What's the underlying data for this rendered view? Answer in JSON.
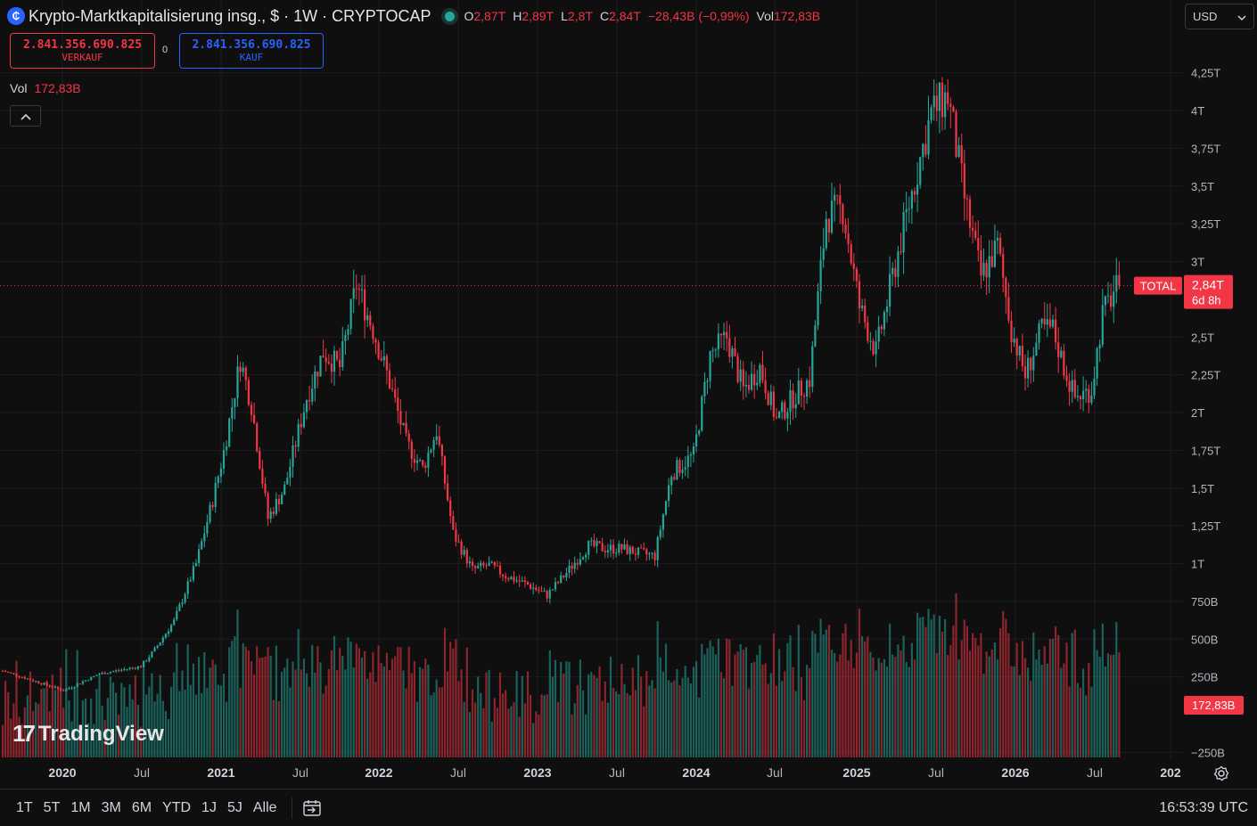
{
  "header": {
    "title": "Krypto-Marktkapitalisierung insg., $ · 1W · CRYPTOCAP",
    "ohlc": [
      {
        "key": "O",
        "value": "2,87T"
      },
      {
        "key": "H",
        "value": "2,89T"
      },
      {
        "key": "L",
        "value": "2,8T"
      },
      {
        "key": "C",
        "value": "2,84T"
      },
      {
        "key": "",
        "value": "−28,43B (−0,99%)"
      }
    ],
    "vol_key": "Vol",
    "vol_value": "172,83B"
  },
  "trade": {
    "sell_price": "2.841.356.690.825",
    "sell_label": "VERKAUF",
    "spread": "0",
    "buy_price": "2.841.356.690.825",
    "buy_label": "KAUF"
  },
  "volume_legend": {
    "label": "Vol",
    "value": "172,83B"
  },
  "currency": {
    "selected": "USD"
  },
  "price_badge": {
    "symbol": "TOTAL",
    "price": "2,84T",
    "countdown": "6d 8h"
  },
  "volume_badge": "172,83B",
  "logo_text": "TradingView",
  "range_buttons": [
    "1T",
    "5T",
    "1M",
    "3M",
    "6M",
    "YTD",
    "1J",
    "5J",
    "Alle"
  ],
  "clock": "16:53:39 UTC",
  "colors": {
    "up": "#26a69a",
    "down": "#f23645",
    "background": "#0f0f0f",
    "grid": "#1e1e1e"
  },
  "icons": [
    "crypto-logo-icon",
    "chevron-up-icon",
    "chevron-down-icon",
    "goto-date-icon",
    "settings-icon"
  ],
  "chart_data": {
    "type": "candlestick",
    "price_axis_labels": [
      "4,25T",
      "4T",
      "3,75T",
      "3,5T",
      "3,25T",
      "3T",
      "2,5T",
      "2,25T",
      "2T",
      "1,75T",
      "1,5T",
      "1,25T",
      "1T",
      "750B",
      "500B",
      "250B",
      "−250B"
    ],
    "time_axis_labels": [
      "2020",
      "Jul",
      "2021",
      "Jul",
      "2022",
      "Jul",
      "2023",
      "Jul",
      "2024",
      "Jul",
      "2025",
      "Jul",
      "2026",
      "Jul",
      "202"
    ],
    "current_price": 2.84,
    "price_anchors_trillions": [
      [
        0,
        0.29
      ],
      [
        12,
        0.22
      ],
      [
        22,
        0.16
      ],
      [
        35,
        0.27
      ],
      [
        50,
        0.32
      ],
      [
        55,
        0.43
      ],
      [
        62,
        0.62
      ],
      [
        70,
        1.0
      ],
      [
        76,
        1.42
      ],
      [
        80,
        1.74
      ],
      [
        86,
        2.35
      ],
      [
        90,
        2.05
      ],
      [
        96,
        1.3
      ],
      [
        102,
        1.5
      ],
      [
        110,
        2.1
      ],
      [
        116,
        2.4
      ],
      [
        122,
        2.3
      ],
      [
        128,
        2.85
      ],
      [
        134,
        2.55
      ],
      [
        140,
        2.2
      ],
      [
        146,
        1.8
      ],
      [
        152,
        1.63
      ],
      [
        157,
        1.88
      ],
      [
        163,
        1.2
      ],
      [
        170,
        0.96
      ],
      [
        176,
        0.99
      ],
      [
        182,
        0.92
      ],
      [
        190,
        0.86
      ],
      [
        197,
        0.79
      ],
      [
        204,
        0.94
      ],
      [
        212,
        1.12
      ],
      [
        218,
        1.1
      ],
      [
        224,
        1.1
      ],
      [
        230,
        1.07
      ],
      [
        236,
        1.05
      ],
      [
        242,
        1.6
      ],
      [
        250,
        1.72
      ],
      [
        256,
        2.38
      ],
      [
        262,
        2.5
      ],
      [
        268,
        2.15
      ],
      [
        274,
        2.3
      ],
      [
        280,
        1.95
      ],
      [
        286,
        2.1
      ],
      [
        292,
        2.22
      ],
      [
        298,
        3.3
      ],
      [
        304,
        3.35
      ],
      [
        310,
        2.7
      ],
      [
        316,
        2.4
      ],
      [
        322,
        2.9
      ],
      [
        328,
        3.38
      ],
      [
        336,
        3.98
      ],
      [
        342,
        4.1
      ],
      [
        348,
        3.42
      ],
      [
        354,
        2.9
      ],
      [
        360,
        3.1
      ],
      [
        365,
        2.55
      ],
      [
        370,
        2.25
      ],
      [
        376,
        2.55
      ],
      [
        380,
        2.55
      ],
      [
        384,
        2.3
      ],
      [
        388,
        2.1
      ],
      [
        394,
        2.15
      ],
      [
        398,
        2.65
      ],
      [
        402,
        2.8
      ],
      [
        404,
        2.84
      ]
    ],
    "volume_axis_note": "volume histogram overlay, latest 172,83B"
  }
}
